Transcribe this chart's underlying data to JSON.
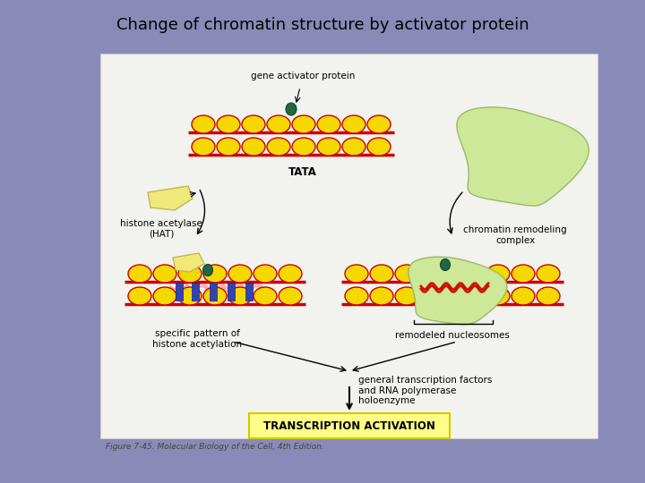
{
  "title": "Change of chromatin structure by activator protein",
  "title_fontsize": 13,
  "background_color": "#8a8ab8",
  "panel_color": "#f2f2ee",
  "nucleosome_color": "#f5d800",
  "nucleosome_outline": "#cc0000",
  "dna_color": "#cc0000",
  "hat_color": "#f0e878",
  "hat_outline": "#c0b850",
  "chromatin_complex_color": "#cce898",
  "chromatin_complex_outline": "#99bb66",
  "blue_rect_color": "#3344aa",
  "teal_protein_color": "#226644",
  "yellow_box_color": "#ffff88",
  "yellow_box_outline": "#cccc00",
  "annotation_fontsize": 7.5,
  "caption_fontsize": 6.5,
  "caption_text": "Figure 7-45. Molecular Biology of the Cell, 4th Edition.",
  "transcription_text": "TRANSCRIPTION ACTIVATION",
  "label_gene_activator": "gene activator protein",
  "label_tata": "TATA",
  "label_hat": "histone acetylase\n(HAT)",
  "label_chromatin": "chromatin remodeling\ncomplex",
  "label_specific": "specific pattern of\nhistone acetylation",
  "label_remodeled": "remodeled nucleosomes",
  "label_general": "general transcription factors\nand RNA polymerase\nholoenzyme"
}
